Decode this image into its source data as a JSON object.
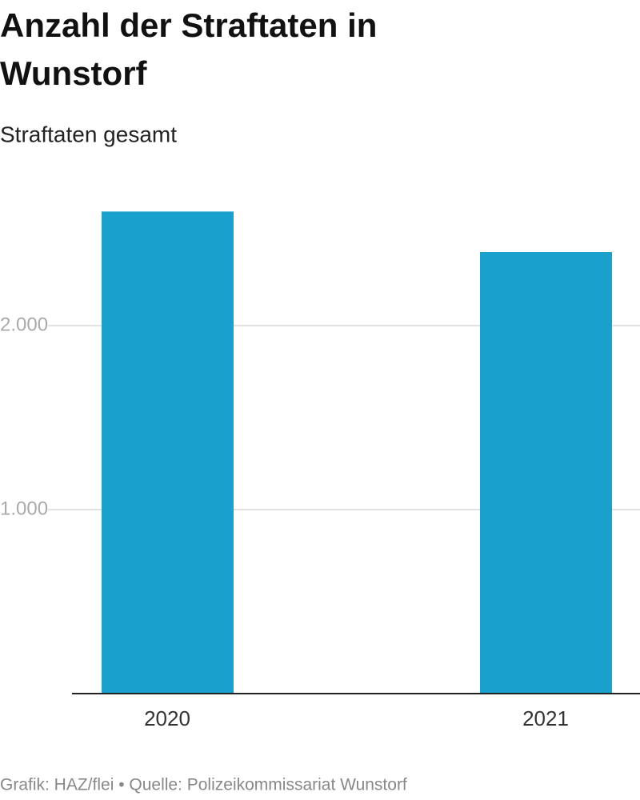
{
  "chart_data": {
    "type": "bar",
    "title": [
      "Anzahl der Straftaten in",
      "Wunstorf"
    ],
    "subtitle": "Straftaten gesamt",
    "categories": [
      "2020",
      "2021"
    ],
    "values": [
      2620,
      2400
    ],
    "color": "#1aa0cc",
    "ylim": [
      0,
      2800
    ],
    "yticks": [
      {
        "value": 1000,
        "label": "1.000"
      },
      {
        "value": 2000,
        "label": "2.000"
      }
    ],
    "grid": true,
    "footer": "Grafik: HAZ/flei • Quelle: Polizeikommissariat Wunstorf"
  }
}
